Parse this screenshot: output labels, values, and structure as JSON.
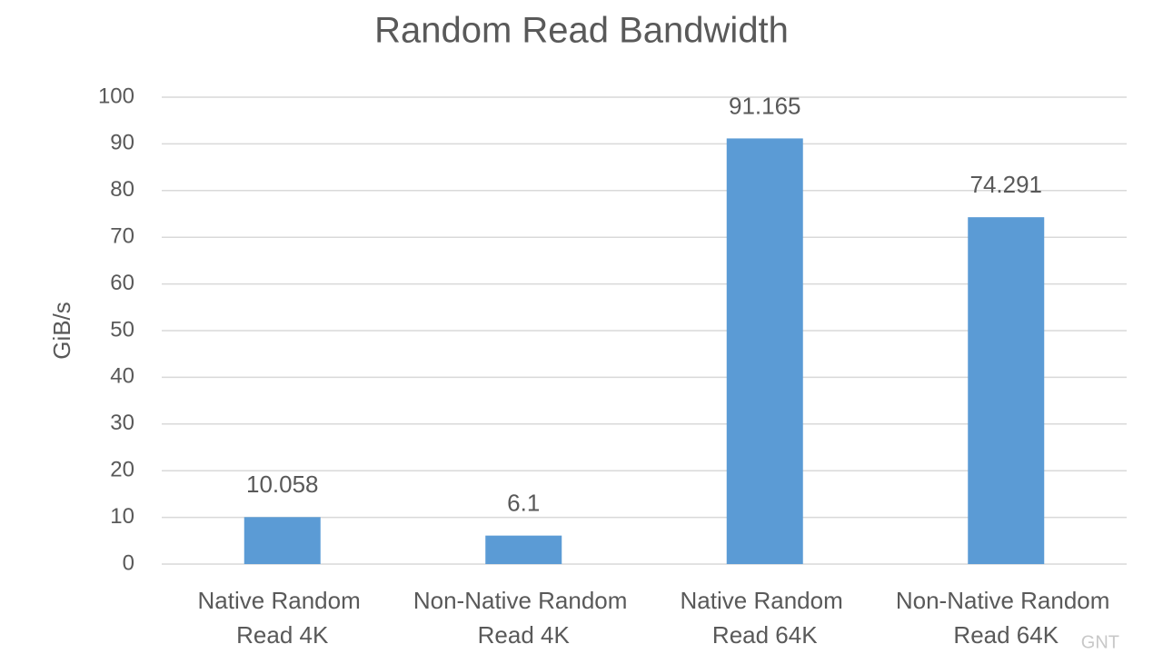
{
  "chart_data": {
    "type": "bar",
    "title": "Random Read Bandwidth",
    "y_label": "GiB/s",
    "categories": [
      "Native Random Read 4K",
      "Non-Native Random Read 4K",
      "Native Random Read 64K",
      "Non-Native Random Read 64K"
    ],
    "values": [
      10.058,
      6.1,
      91.165,
      74.291
    ],
    "color": "#5b9bd5",
    "ylim": [
      0,
      100
    ],
    "yticks": [
      0,
      10,
      20,
      30,
      40,
      50,
      60,
      70,
      80,
      90,
      100
    ],
    "grid": true,
    "watermark": "GNT"
  }
}
